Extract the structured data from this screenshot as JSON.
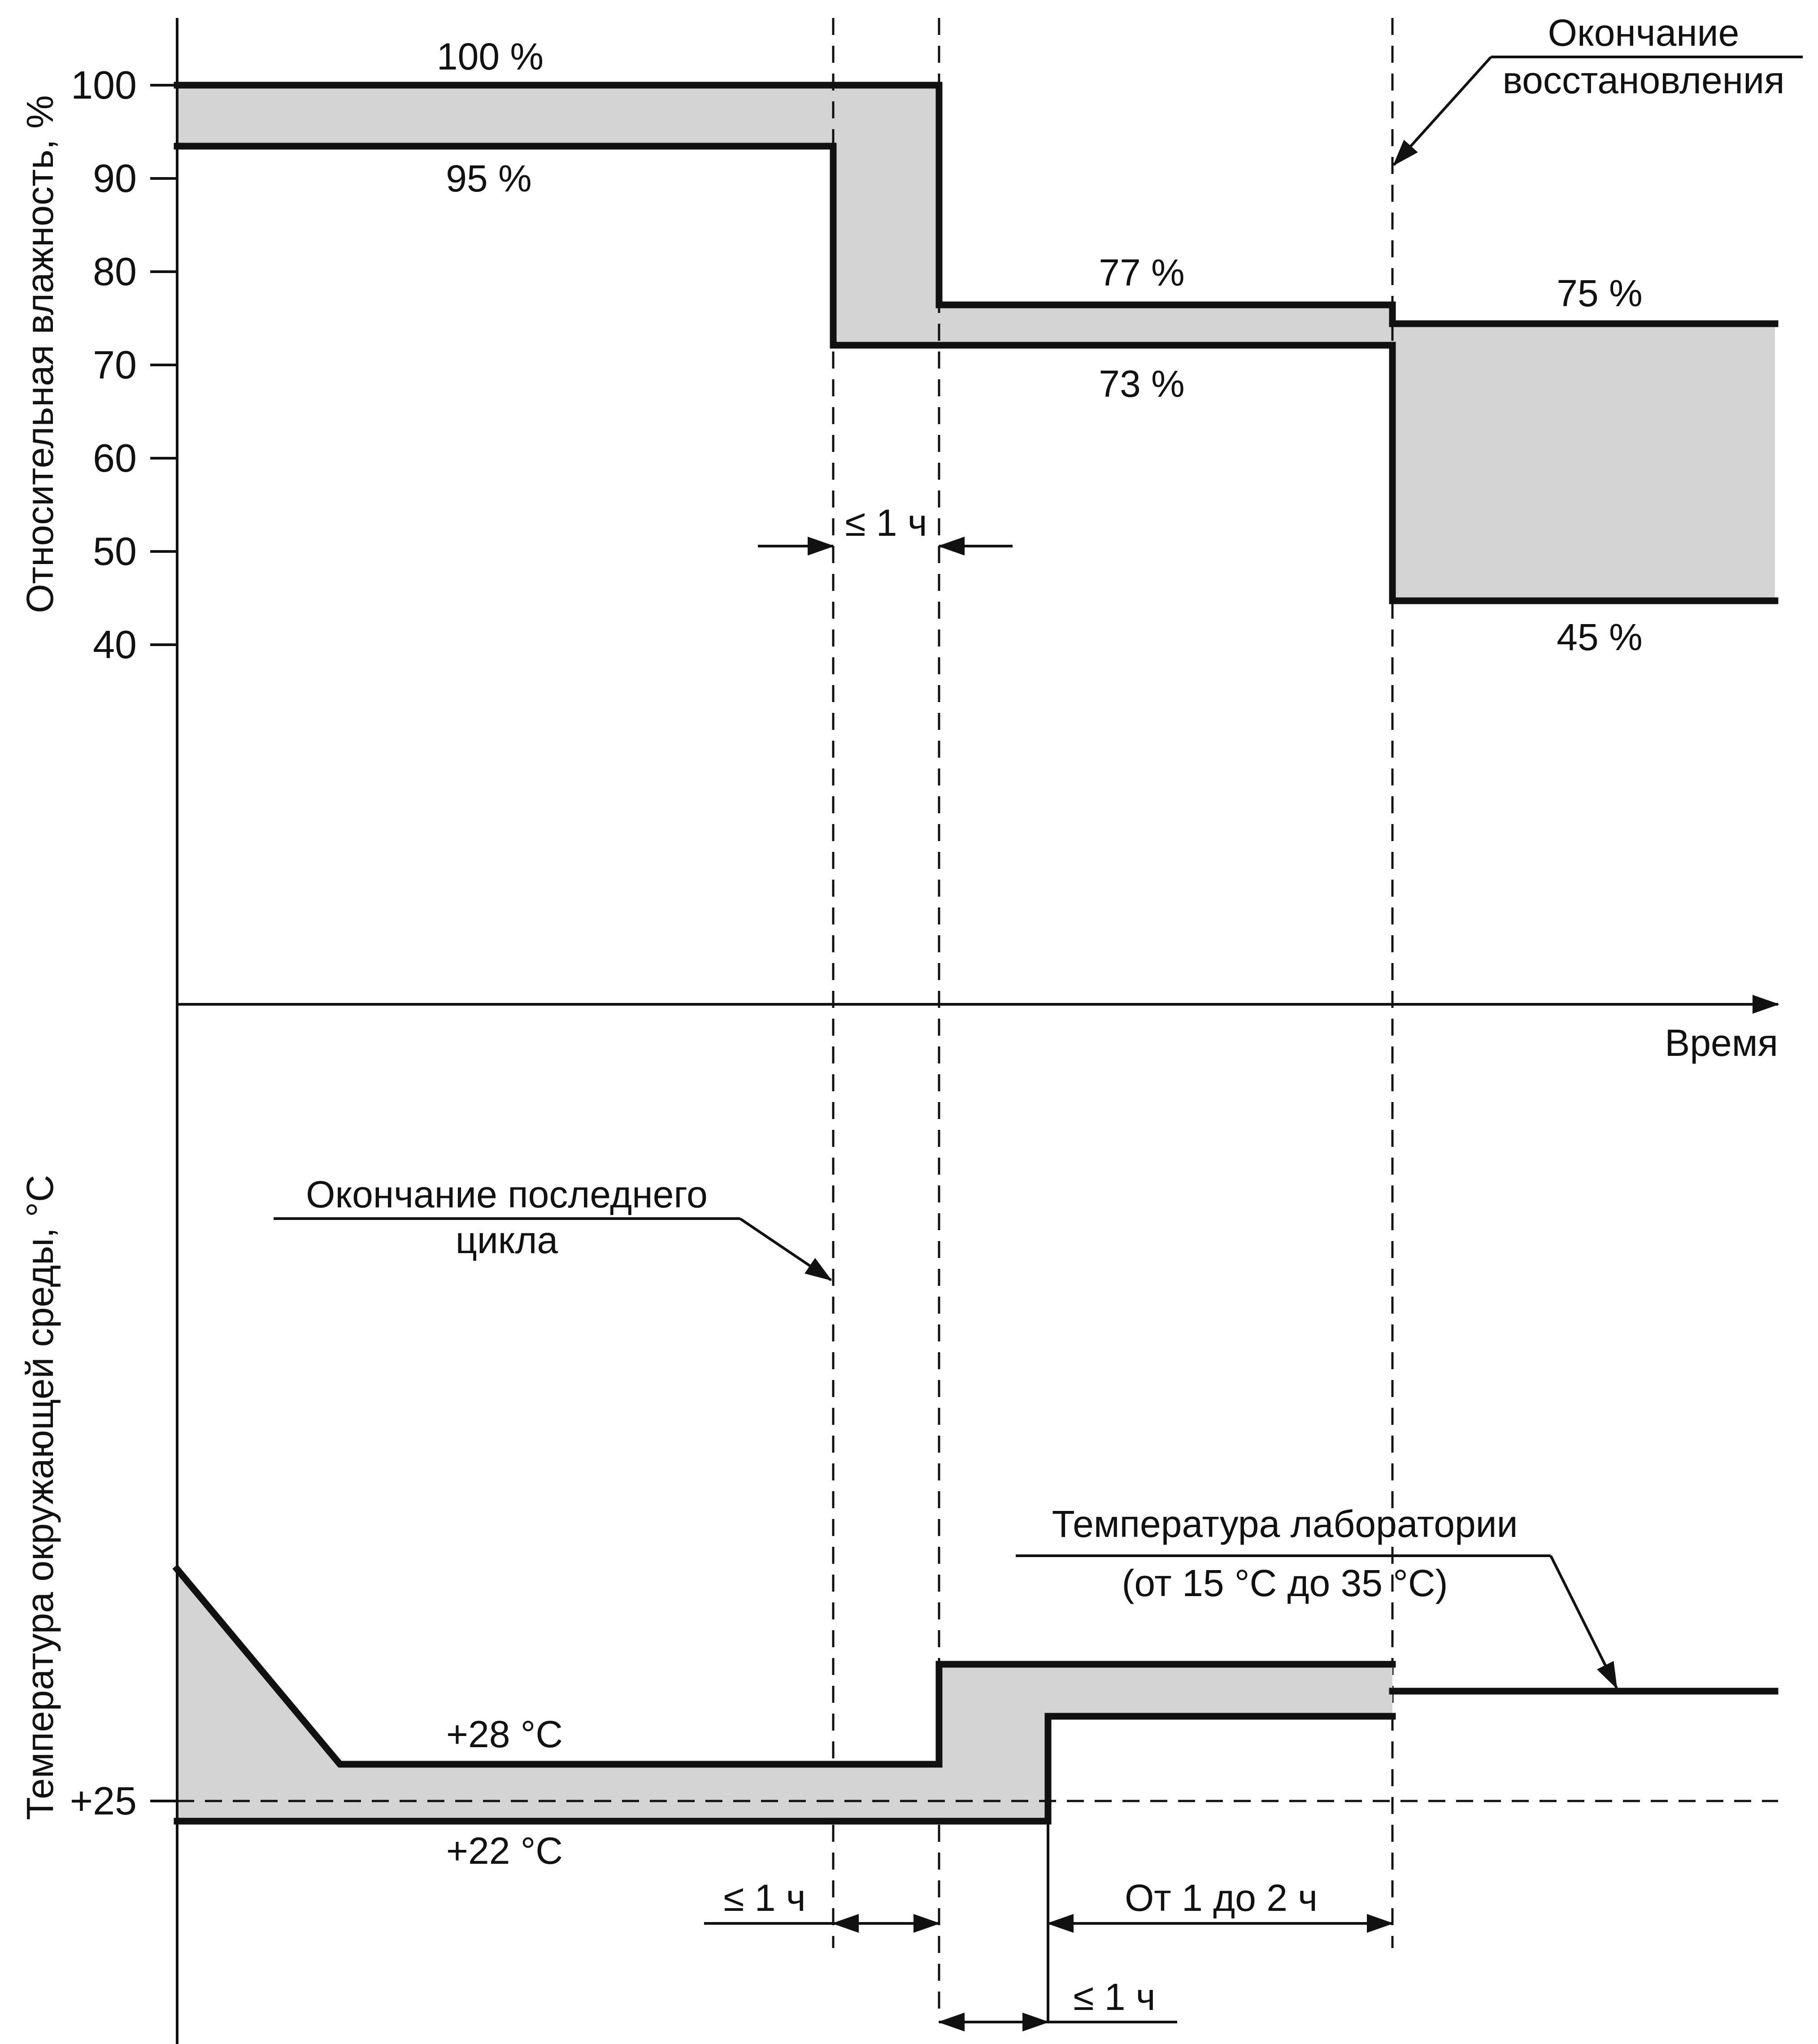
{
  "colors": {
    "band": "#d4d4d4",
    "line": "#111111",
    "background": "#ffffff"
  },
  "humidity": {
    "axis_label": "Относительная влажность, %",
    "ticks": [
      "100",
      "90",
      "80",
      "70",
      "60",
      "50",
      "40"
    ],
    "upper_labels": [
      "100 %",
      "77 %",
      "75 %"
    ],
    "lower_labels": [
      "95 %",
      "73 %",
      "45 %"
    ],
    "stage_duration": "≤ 1 ч",
    "recovery_end": [
      "Окончание",
      "восстановления"
    ],
    "time_axis_label": "Время"
  },
  "temperature": {
    "axis_label": "Температура окружающей среды, °С",
    "ref_tick": "+25",
    "upper_label": "+28 °С",
    "lower_label": "+22 °С",
    "last_cycle_end": [
      "Окончание последнего",
      "цикла"
    ],
    "lab_temperature": [
      "Температура лаборатории",
      "(от 15 °С до 35 °С)"
    ],
    "durations": {
      "first": "≤ 1 ч",
      "second": "≤ 1 ч",
      "recovery": "От 1 до 2 ч"
    }
  }
}
